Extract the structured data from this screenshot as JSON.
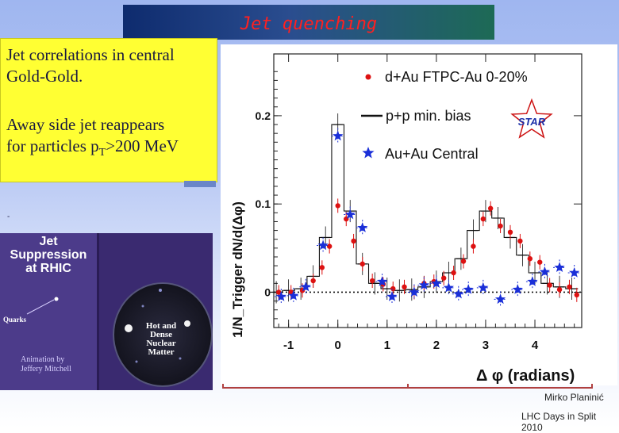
{
  "header": {
    "title": "Jet quenching"
  },
  "textbox": {
    "line1": "Jet correlations in central",
    "line2": "Gold-Gold.",
    "line3": "Away side jet reappears",
    "line4": "for particles p",
    "line4_sub": "T",
    "line4_end": ">200 MeV",
    "dash": "-"
  },
  "animation": {
    "title_lines": [
      "Jet",
      "Suppression",
      "at RHIC"
    ],
    "quarks_label": "Quarks",
    "credit_lines": [
      "Animation by",
      "Jeffery Mitchell"
    ],
    "nucleus_lines": [
      "Hot and",
      "Dense",
      "Nuclear",
      "Matter"
    ]
  },
  "footer": {
    "author": "Mirko Planinić",
    "event": "LHC Days in Split 2010"
  },
  "chart_data": {
    "type": "scatter",
    "ylabel": "1/N_Trigger dN/d(Δφ)",
    "xlabel": "Δ φ (radians)",
    "xlim": [
      -1.3,
      4.95
    ],
    "ylim": [
      -0.04,
      0.27
    ],
    "xticks": [
      -1,
      0,
      1,
      2,
      3,
      4
    ],
    "yticks": [
      0,
      0.1,
      0.2
    ],
    "ytick_labels": [
      "0",
      "0.1",
      "0.2"
    ],
    "zero_line": "dotted",
    "logo": "STAR",
    "legend_position": "top-right",
    "colors": {
      "dau": "#dd1111",
      "auau": "#1a2fd8",
      "pp": "#111111"
    },
    "legend": [
      {
        "label": "d+Au FTPC-Au 0-20%",
        "marker": "circle"
      },
      {
        "label": "p+p min. bias",
        "marker": "line"
      },
      {
        "label": "Au+Au Central",
        "marker": "star"
      }
    ],
    "series": [
      {
        "name": "d+Au FTPC-Au 0-20%",
        "x": [
          -1.2,
          -0.95,
          -0.72,
          -0.5,
          -0.32,
          -0.17,
          0.0,
          0.17,
          0.32,
          0.5,
          0.7,
          0.92,
          1.12,
          1.35,
          1.55,
          1.75,
          1.95,
          2.15,
          2.35,
          2.55,
          2.75,
          2.95,
          3.1,
          3.3,
          3.5,
          3.7,
          3.9,
          4.1,
          4.3,
          4.5,
          4.7,
          4.85
        ],
        "y": [
          0.0,
          0.0,
          0.002,
          0.013,
          0.028,
          0.052,
          0.098,
          0.083,
          0.058,
          0.032,
          0.013,
          0.009,
          0.004,
          0.006,
          0.0,
          0.01,
          0.012,
          0.016,
          0.022,
          0.035,
          0.052,
          0.083,
          0.095,
          0.075,
          0.068,
          0.058,
          0.038,
          0.034,
          0.008,
          0.003,
          0.006,
          -0.003
        ]
      },
      {
        "name": "Au+Au Central",
        "x": [
          -1.15,
          -0.9,
          -0.65,
          -0.3,
          0.0,
          0.25,
          0.5,
          0.9,
          1.1,
          1.55,
          1.75,
          2.0,
          2.25,
          2.45,
          2.65,
          2.95,
          3.3,
          3.65,
          3.95,
          4.2,
          4.5,
          4.8
        ],
        "y": [
          -0.005,
          -0.004,
          0.006,
          0.053,
          0.177,
          0.088,
          0.073,
          0.012,
          -0.005,
          0.0,
          0.008,
          0.01,
          0.005,
          -0.002,
          0.003,
          0.005,
          -0.008,
          0.003,
          0.012,
          0.023,
          0.028,
          0.022
        ]
      },
      {
        "name": "p+p min. bias",
        "x": [
          -1.25,
          -1.0,
          -0.75,
          -0.5,
          -0.25,
          0.0,
          0.25,
          0.5,
          0.75,
          1.0,
          1.25,
          1.5,
          1.75,
          2.0,
          2.25,
          2.5,
          2.75,
          3.0,
          3.25,
          3.5,
          3.75,
          4.0,
          4.25,
          4.5,
          4.75
        ],
        "y": [
          0.0,
          0.002,
          0.004,
          0.018,
          0.062,
          0.19,
          0.092,
          0.032,
          0.01,
          0.004,
          0.002,
          0.003,
          0.006,
          0.012,
          0.022,
          0.038,
          0.07,
          0.092,
          0.084,
          0.062,
          0.042,
          0.022,
          0.01,
          0.006,
          0.004
        ]
      }
    ]
  }
}
